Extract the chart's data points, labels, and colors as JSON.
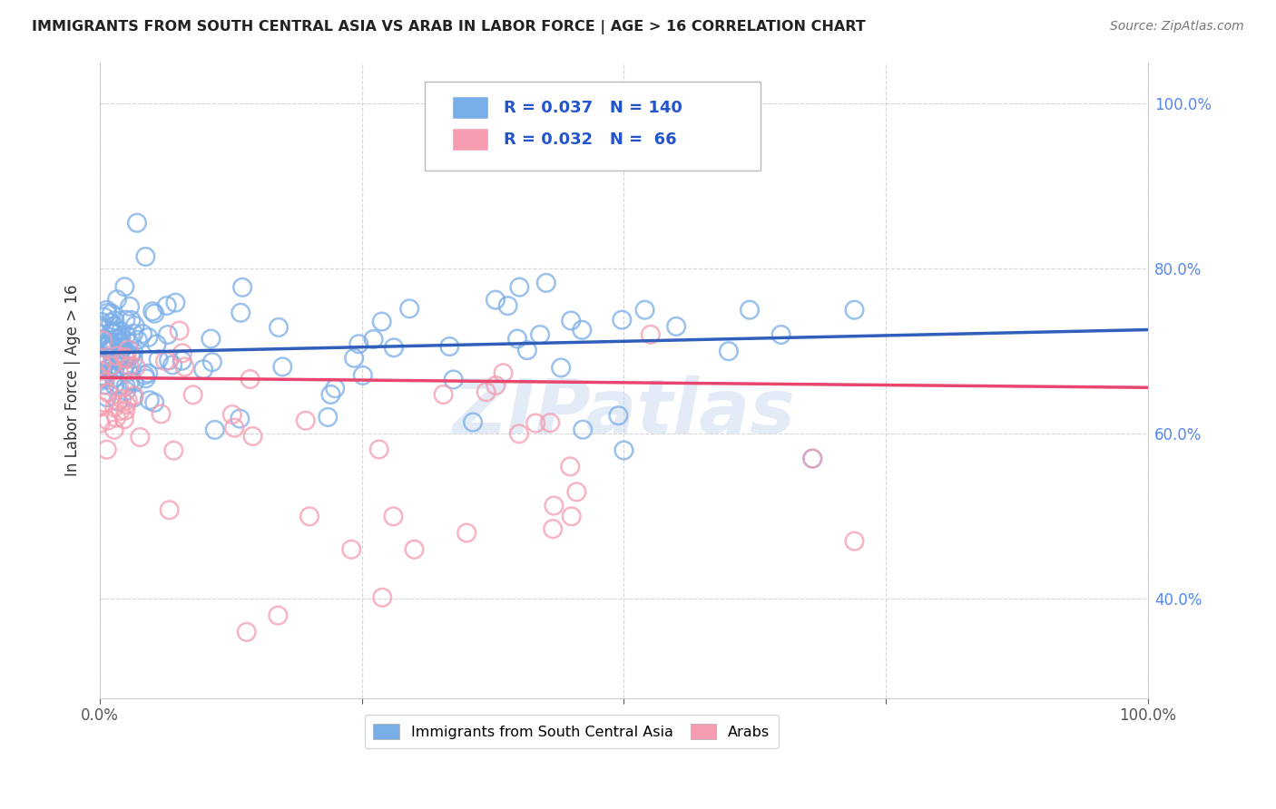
{
  "title": "IMMIGRANTS FROM SOUTH CENTRAL ASIA VS ARAB IN LABOR FORCE | AGE > 16 CORRELATION CHART",
  "source": "Source: ZipAtlas.com",
  "ylabel": "In Labor Force | Age > 16",
  "xlim": [
    0.0,
    1.0
  ],
  "ylim": [
    0.28,
    1.05
  ],
  "y_ticks_right": [
    0.4,
    0.6,
    0.8,
    1.0
  ],
  "y_tick_labels_right": [
    "40.0%",
    "60.0%",
    "80.0%",
    "100.0%"
  ],
  "blue_color": "#7aaee8",
  "pink_color": "#f59cb0",
  "blue_line_color": "#2f5fba",
  "pink_line_color": "#e8466e",
  "blue_R": 0.037,
  "blue_N": 140,
  "pink_R": 0.032,
  "pink_N": 66,
  "legend_label_blue": "Immigrants from South Central Asia",
  "legend_label_pink": "Arabs",
  "watermark": "ZIPatlas",
  "background_color": "#ffffff",
  "grid_color": "#cccccc",
  "blue_trend_x0": 0.0,
  "blue_trend_y0": 0.698,
  "blue_trend_x1": 1.0,
  "blue_trend_y1": 0.726,
  "pink_trend_x0": 0.0,
  "pink_trend_y0": 0.668,
  "pink_trend_x1": 1.0,
  "pink_trend_y1": 0.656
}
